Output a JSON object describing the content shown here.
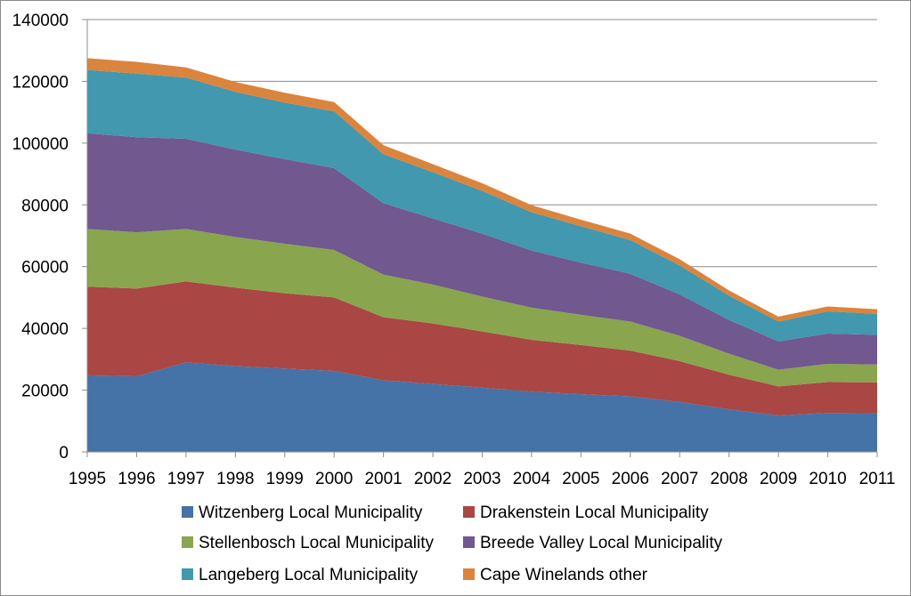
{
  "chart_data": {
    "type": "area",
    "stacked": true,
    "x": [
      "1995",
      "1996",
      "1997",
      "1998",
      "1999",
      "2000",
      "2001",
      "2002",
      "2003",
      "2004",
      "2005",
      "2006",
      "2007",
      "2008",
      "2009",
      "2010",
      "2011"
    ],
    "ylim": [
      0,
      140000
    ],
    "yticks": [
      0,
      20000,
      40000,
      60000,
      80000,
      100000,
      120000,
      140000
    ],
    "ytick_labels": [
      "0",
      "20000",
      "40000",
      "60000",
      "80000",
      "100000",
      "120000",
      "140000"
    ],
    "grid": true,
    "legend_position": "bottom",
    "series": [
      {
        "name": "Witzenberg Local Municipality",
        "color": "#4572A7",
        "values": [
          24800,
          24500,
          29000,
          27800,
          27000,
          26200,
          23200,
          22000,
          20800,
          19500,
          18700,
          18000,
          16200,
          13800,
          11800,
          12600,
          12500
        ]
      },
      {
        "name": "Drakenstein Local Municipality",
        "color": "#AA4643",
        "values": [
          28700,
          28400,
          26200,
          25400,
          24400,
          23800,
          20400,
          19600,
          18200,
          16800,
          15900,
          14800,
          13200,
          11200,
          9400,
          10000,
          10000
        ]
      },
      {
        "name": "Stellenbosch Local Municipality",
        "color": "#89A54E",
        "values": [
          18700,
          18200,
          17000,
          16400,
          16000,
          15400,
          13800,
          12600,
          11300,
          10400,
          9800,
          9400,
          8200,
          6800,
          5400,
          5900,
          5800
        ]
      },
      {
        "name": "Breede Valley Local Municipality",
        "color": "#71588F",
        "values": [
          31000,
          30800,
          29200,
          28300,
          27400,
          26500,
          23100,
          21400,
          20400,
          18500,
          16900,
          15500,
          13400,
          10900,
          9200,
          9800,
          9600
        ]
      },
      {
        "name": "Langeberg Local Municipality",
        "color": "#4198AF",
        "values": [
          20500,
          20600,
          19800,
          18700,
          18300,
          18400,
          15900,
          15000,
          13800,
          12400,
          11800,
          10900,
          9400,
          7900,
          6400,
          7200,
          6800
        ]
      },
      {
        "name": "Cape Winelands other",
        "color": "#DB843D",
        "values": [
          3800,
          3800,
          3300,
          3200,
          3200,
          3000,
          2900,
          2600,
          2500,
          2300,
          2100,
          2100,
          2000,
          1700,
          1600,
          1600,
          1500
        ]
      }
    ]
  }
}
